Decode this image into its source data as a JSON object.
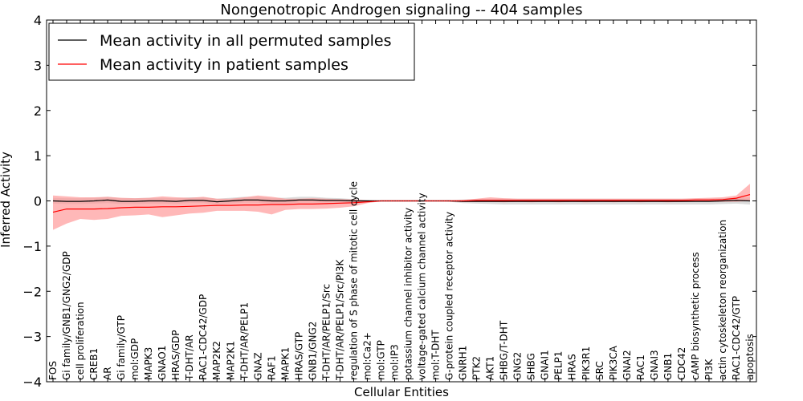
{
  "chart_data": {
    "type": "line",
    "title": "Nongenotropic Androgen signaling -- 404 samples",
    "xlabel": "Cellular Entities",
    "ylabel": "Inferred Activity",
    "ylim": [
      -4,
      4
    ],
    "yticks": [
      -4,
      -3,
      -2,
      -1,
      0,
      1,
      2,
      3,
      4
    ],
    "ytick_labels": [
      "−4",
      "−3",
      "−2",
      "−1",
      "0",
      "1",
      "2",
      "3",
      "4"
    ],
    "grid": false,
    "legend_position": "top-left",
    "categories": [
      "FOS",
      "Gi family/GNB1/GNG2/GDP",
      "cell proliferation",
      "CREB1",
      "AR",
      "Gi family/GTP",
      "mol:GDP",
      "MAPK3",
      "GNAO1",
      "HRAS/GDP",
      "T-DHT/AR",
      "RAC1-CDC42/GDP",
      "MAP2K2",
      "MAP2K1",
      "T-DHT/AR/PELP1",
      "GNAZ",
      "RAF1",
      "MAPK1",
      "HRAS/GTP",
      "GNB1/GNG2",
      "T-DHT/AR/PELP1/Src",
      "T-DHT/AR/PELP1/Src/PI3K",
      "regulation of S phase of mitotic cell cycle",
      "mol:Ca2+",
      "mol:GTP",
      "mol:IP3",
      "potassium channel inhibitor activity",
      "voltage-gated calcium channel activity",
      "mol:T-DHT",
      "G-protein coupled receptor activity",
      "GNRH1",
      "PTK2",
      "AKT1",
      "SHBG/T-DHT",
      "GNG2",
      "SHBG",
      "GNAI1",
      "PELP1",
      "HRAS",
      "PIK3R1",
      "SRC",
      "PIK3CA",
      "GNAI2",
      "RAC1",
      "GNAI3",
      "GNB1",
      "CDC42",
      "cAMP biosynthetic process",
      "PI3K",
      "actin cytoskeleton reorganization",
      "RAC1-CDC42/GTP",
      "apoptosis"
    ],
    "series": [
      {
        "name": "Mean activity in all permuted samples",
        "color": "#000000",
        "band_color": "#c8c8c8",
        "values": [
          0.0,
          -0.01,
          -0.01,
          0.0,
          0.02,
          -0.01,
          -0.01,
          0.0,
          0.0,
          -0.01,
          0.01,
          0.01,
          -0.02,
          0.0,
          0.02,
          0.02,
          0.0,
          0.0,
          0.02,
          0.02,
          0.01,
          0.01,
          0.0,
          0.0,
          0.0,
          0.0,
          0.0,
          0.0,
          0.0,
          0.0,
          -0.01,
          -0.01,
          -0.01,
          -0.01,
          -0.01,
          -0.01,
          -0.01,
          -0.01,
          -0.01,
          -0.01,
          -0.01,
          -0.01,
          -0.01,
          -0.01,
          -0.01,
          -0.01,
          -0.01,
          -0.01,
          -0.01,
          0.0,
          0.01,
          0.0
        ],
        "band_low": [
          -0.06,
          -0.07,
          -0.07,
          -0.06,
          -0.05,
          -0.07,
          -0.07,
          -0.06,
          -0.06,
          -0.07,
          -0.05,
          -0.05,
          -0.08,
          -0.06,
          -0.04,
          -0.04,
          -0.06,
          -0.06,
          -0.04,
          -0.04,
          -0.04,
          -0.04,
          -0.03,
          -0.02,
          -0.01,
          -0.01,
          -0.01,
          -0.01,
          -0.01,
          -0.02,
          -0.05,
          -0.06,
          -0.07,
          -0.08,
          -0.08,
          -0.08,
          -0.08,
          -0.08,
          -0.08,
          -0.08,
          -0.08,
          -0.08,
          -0.08,
          -0.08,
          -0.08,
          -0.08,
          -0.08,
          -0.08,
          -0.08,
          -0.07,
          -0.06,
          -0.08
        ],
        "band_high": [
          0.07,
          0.06,
          0.06,
          0.07,
          0.09,
          0.06,
          0.06,
          0.07,
          0.07,
          0.06,
          0.08,
          0.08,
          0.05,
          0.07,
          0.09,
          0.09,
          0.07,
          0.07,
          0.09,
          0.09,
          0.07,
          0.06,
          0.04,
          0.02,
          0.01,
          0.01,
          0.01,
          0.01,
          0.01,
          0.02,
          0.03,
          0.04,
          0.05,
          0.05,
          0.05,
          0.05,
          0.05,
          0.05,
          0.05,
          0.05,
          0.05,
          0.05,
          0.05,
          0.05,
          0.05,
          0.05,
          0.05,
          0.05,
          0.05,
          0.06,
          0.07,
          0.08
        ]
      },
      {
        "name": "Mean activity in patient samples",
        "color": "#ff0000",
        "band_color": "#ff9a9a",
        "values": [
          -0.25,
          -0.18,
          -0.18,
          -0.18,
          -0.17,
          -0.15,
          -0.14,
          -0.14,
          -0.13,
          -0.13,
          -0.12,
          -0.11,
          -0.1,
          -0.1,
          -0.09,
          -0.09,
          -0.08,
          -0.08,
          -0.07,
          -0.07,
          -0.06,
          -0.05,
          -0.04,
          -0.02,
          0.0,
          0.0,
          0.0,
          0.0,
          0.0,
          0.0,
          0.0,
          0.01,
          0.01,
          0.01,
          0.01,
          0.01,
          0.01,
          0.01,
          0.01,
          0.01,
          0.01,
          0.01,
          0.01,
          0.01,
          0.01,
          0.01,
          0.01,
          0.02,
          0.02,
          0.03,
          0.06,
          0.14
        ],
        "band_low": [
          -0.64,
          -0.5,
          -0.4,
          -0.42,
          -0.4,
          -0.33,
          -0.32,
          -0.3,
          -0.36,
          -0.32,
          -0.28,
          -0.26,
          -0.22,
          -0.22,
          -0.22,
          -0.24,
          -0.3,
          -0.2,
          -0.18,
          -0.18,
          -0.17,
          -0.15,
          -0.12,
          -0.05,
          -0.01,
          -0.01,
          -0.01,
          -0.01,
          -0.01,
          -0.01,
          -0.02,
          -0.02,
          -0.02,
          -0.03,
          -0.02,
          -0.03,
          -0.02,
          -0.03,
          -0.02,
          -0.03,
          -0.02,
          -0.03,
          -0.02,
          -0.03,
          -0.02,
          -0.03,
          -0.02,
          -0.02,
          -0.02,
          -0.02,
          -0.02,
          0.0
        ],
        "band_high": [
          0.12,
          0.1,
          0.08,
          0.08,
          0.09,
          0.07,
          0.06,
          0.07,
          0.1,
          0.08,
          0.07,
          0.09,
          0.05,
          0.05,
          0.08,
          0.12,
          0.09,
          0.05,
          0.05,
          0.06,
          0.05,
          0.04,
          0.03,
          0.01,
          0.01,
          0.01,
          0.01,
          0.01,
          0.01,
          0.01,
          0.02,
          0.05,
          0.08,
          0.06,
          0.05,
          0.05,
          0.05,
          0.05,
          0.05,
          0.05,
          0.05,
          0.05,
          0.05,
          0.05,
          0.05,
          0.05,
          0.05,
          0.06,
          0.07,
          0.08,
          0.12,
          0.38
        ]
      }
    ]
  }
}
